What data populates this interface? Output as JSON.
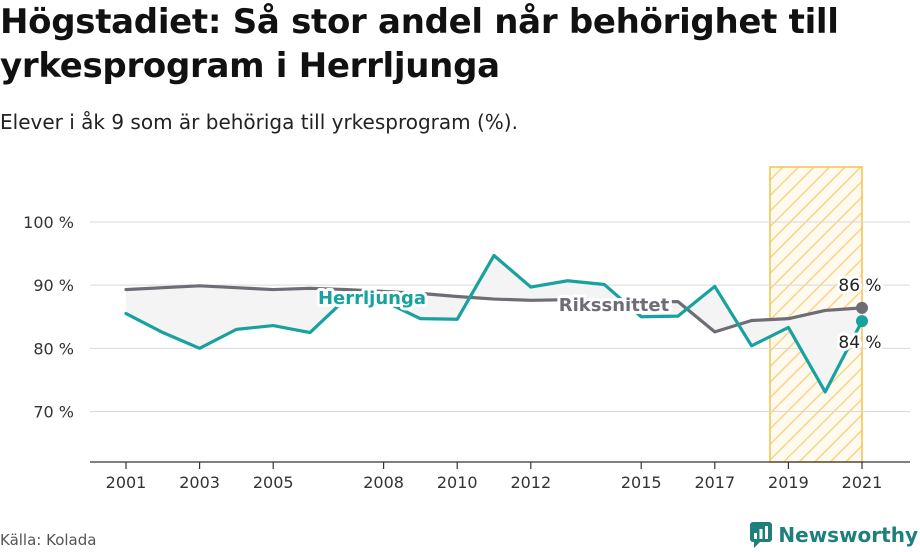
{
  "title": "Högstadiet: Så stor andel når behörighet till yrkesprogram i Herrljunga",
  "subtitle": "Elever i åk 9 som är behöriga till yrkesprogram (%).",
  "source": "Källa: Kolada",
  "brand": "Newsworthy",
  "colors": {
    "herrljunga": "#17a2a0",
    "riket": "#6e6c74",
    "highlight": "#f6c14b",
    "grid": "#d9d9d9",
    "fill": "#f4f4f4"
  },
  "chart_data": {
    "type": "line",
    "ylim": [
      62,
      100
    ],
    "xlim": [
      1999.8,
      2021.6
    ],
    "y_ticks": [
      70,
      80,
      90,
      100
    ],
    "y_tick_labels": [
      "70 %",
      "80 %",
      "90 %",
      "100 %"
    ],
    "x_ticks": [
      2001,
      2003,
      2005,
      2008,
      2010,
      2012,
      2015,
      2017,
      2019,
      2021
    ],
    "x_tick_labels": [
      "2001",
      "2003",
      "2005",
      "2008",
      "2010",
      "2012",
      "2015",
      "2017",
      "2019",
      "2021"
    ],
    "grid": true,
    "highlight_range": [
      2018.5,
      2021.0
    ],
    "series": [
      {
        "name": "Herrljunga",
        "x": [
          2001,
          2002,
          2003,
          2004,
          2005,
          2006,
          2007,
          2008,
          2009,
          2010,
          2011,
          2012,
          2013,
          2014,
          2015,
          2016,
          2017,
          2018,
          2019,
          2020,
          2021
        ],
        "values": [
          85.5,
          82.5,
          80.0,
          83.0,
          83.6,
          82.5,
          88.0,
          87.5,
          84.7,
          84.6,
          94.7,
          89.7,
          90.7,
          90.1,
          85.0,
          85.1,
          89.8,
          80.4,
          83.3,
          73.1,
          84.3
        ]
      },
      {
        "name": "Rikssnittet",
        "x": [
          2001,
          2002,
          2003,
          2004,
          2005,
          2006,
          2007,
          2008,
          2009,
          2010,
          2011,
          2012,
          2013,
          2014,
          2015,
          2016,
          2017,
          2018,
          2019,
          2020,
          2021
        ],
        "values": [
          89.3,
          89.6,
          89.9,
          89.6,
          89.3,
          89.5,
          89.3,
          89.0,
          88.7,
          88.2,
          87.8,
          87.6,
          87.7,
          87.5,
          87.3,
          87.4,
          82.6,
          84.4,
          84.7,
          86.0,
          86.4
        ]
      }
    ],
    "series_labels": [
      "Herrljunga",
      "Rikssnittet"
    ],
    "end_labels": [
      "84 %",
      "86 %"
    ]
  }
}
